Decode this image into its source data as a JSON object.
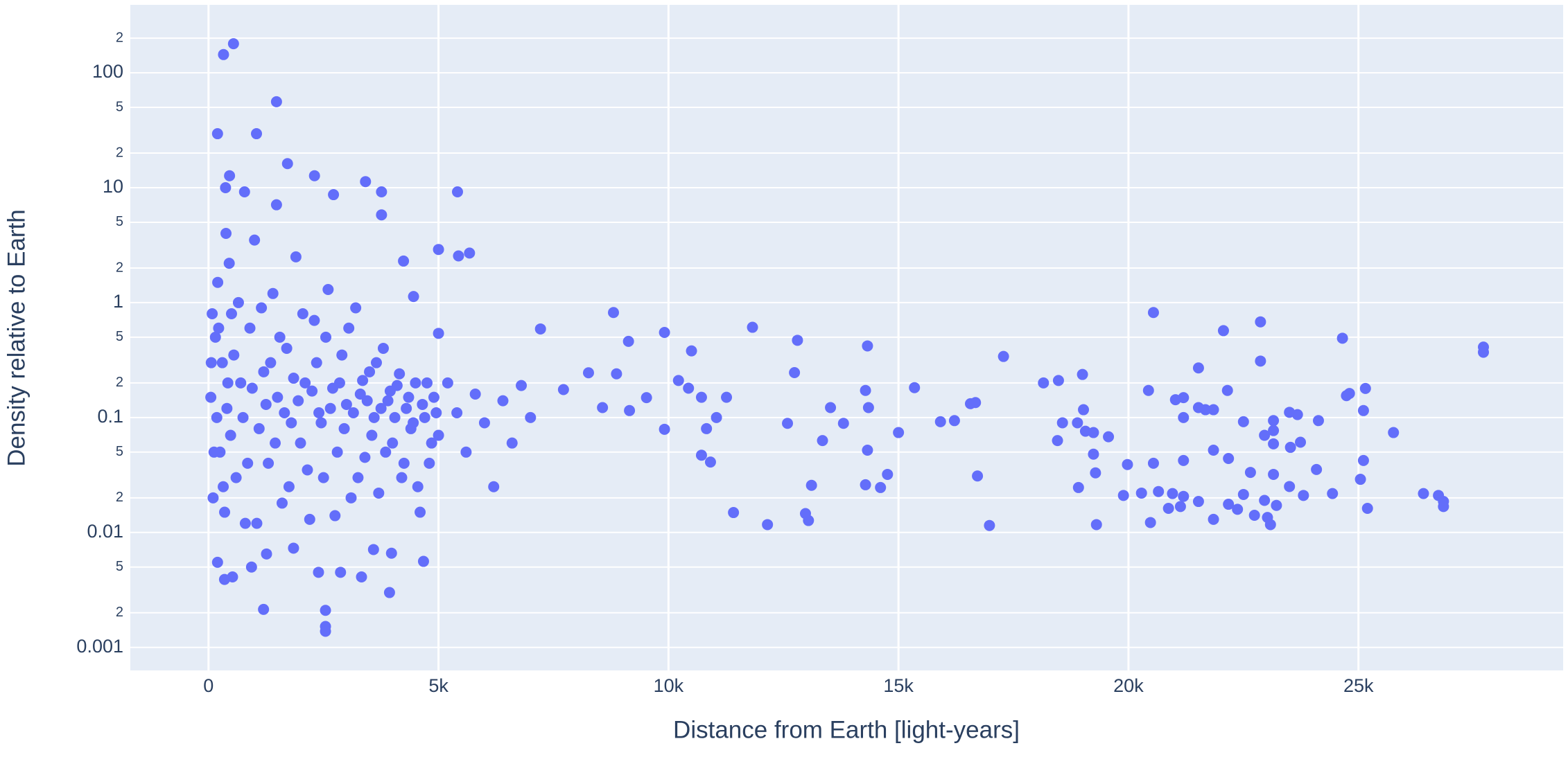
{
  "chart_data": {
    "type": "scatter",
    "xlabel": "Distance from Earth [light-years]",
    "ylabel": "Density relative to Earth",
    "color": "#636efa",
    "grid": true,
    "ylog": true,
    "xlim": [
      -1700,
      29450
    ],
    "ylim": [
      0.00063,
      390
    ],
    "xticks": [
      0,
      {
        "value": 5000,
        "label": "5k"
      },
      {
        "value": 10000,
        "label": "10k"
      },
      {
        "value": 15000,
        "label": "15k"
      },
      {
        "value": 20000,
        "label": "20k"
      },
      {
        "value": 25000,
        "label": "25k"
      }
    ],
    "yticks": [
      0.001,
      0.01,
      0.1,
      1,
      10,
      100
    ],
    "yminorticks": [
      {
        "value": 0.002,
        "label": "2"
      },
      {
        "value": 0.005,
        "label": "5"
      },
      {
        "value": 0.02,
        "label": "2"
      },
      {
        "value": 0.05,
        "label": "5"
      },
      {
        "value": 0.2,
        "label": "2"
      },
      {
        "value": 0.5,
        "label": "5"
      },
      2,
      5,
      {
        "value": 20,
        "label": "2"
      },
      {
        "value": 50,
        "label": "5"
      },
      {
        "value": 200,
        "label": "2"
      }
    ],
    "x": [
      543,
      326,
      1478,
      196,
      1043,
      1717,
      2304,
      457,
      3413,
      5413,
      3761,
      783,
      2717,
      370,
      3761,
      1478,
      5000,
      5435,
      5674,
      4239,
      4457,
      5000,
      8804,
      7217,
      9130,
      9913,
      10500,
      11826,
      12804,
      14326,
      17283,
      20543,
      22065,
      22870,
      24652,
      27717,
      27717,
      22870,
      21522,
      1196,
      2543,
      2543,
      2543,
      3935,
      348,
      522,
      2391,
      2870,
      3326,
      4674,
      935,
      196,
      1261,
      1848,
      3587,
      3978,
      100,
      150,
      200,
      250,
      300,
      350,
      400,
      450,
      500,
      600,
      700,
      800,
      900,
      1000,
      1100,
      1200,
      1300,
      1400,
      1500,
      1600,
      1700,
      1800,
      1900,
      2000,
      2100,
      2200,
      2300,
      2400,
      2500,
      2600,
      2700,
      2800,
      2900,
      3000,
      3100,
      3200,
      3300,
      3400,
      3500,
      3600,
      3700,
      3800,
      3900,
      4000,
      4100,
      4200,
      4300,
      4400,
      4500,
      4600,
      4700,
      4800,
      4900,
      5000,
      5200,
      5400,
      5600,
      5800,
      6000,
      6200,
      6400,
      6600,
      6800,
      7000,
      50,
      80,
      120,
      60,
      180,
      220,
      320,
      380,
      420,
      480,
      550,
      650,
      750,
      850,
      950,
      1050,
      1150,
      1250,
      1350,
      1450,
      1550,
      1650,
      1750,
      1850,
      1950,
      2050,
      2150,
      2250,
      2350,
      2450,
      2550,
      2650,
      2750,
      2850,
      2950,
      3050,
      3150,
      3250,
      3350,
      3450,
      3550,
      3650,
      3750,
      3850,
      3950,
      4050,
      4150,
      4250,
      4350,
      4450,
      4550,
      4650,
      4750,
      4850,
      4950,
      7717,
      8261,
      8565,
      8870,
      9152,
      9522,
      9913,
      10217,
      10435,
      10717,
      10826,
      11043,
      11261,
      10717,
      10913,
      11413,
      12152,
      12587,
      12739,
      12978,
      13043,
      13109,
      13348,
      13522,
      13804,
      14283,
      14348,
      14326,
      14283,
      14609,
      14761,
      15000,
      15348,
      15913,
      16217,
      16565,
      16674,
      16717,
      16978,
      18152,
      18478,
      18565,
      18457,
      18891,
      19000,
      19022,
      19065,
      19239,
      19239,
      19283,
      19304,
      18913,
      19565,
      19978,
      19891,
      20283,
      20435,
      20543,
      20478,
      20652,
      20870,
      20957,
      21022,
      21196,
      21196,
      21196,
      21196,
      21130,
      21522,
      21522,
      21674,
      21848,
      21848,
      21848,
      22152,
      22174,
      22174,
      22370,
      22500,
      22500,
      22652,
      22739,
      22957,
      22957,
      23022,
      23087,
      23152,
      23152,
      23152,
      23152,
      23217,
      23500,
      23522,
      23500,
      23674,
      23739,
      23804,
      24087,
      24130,
      24435,
      24739,
      24804,
      25152,
      25109,
      25109,
      25043,
      25196,
      25761,
      26413,
      26739,
      26848,
      26848
    ],
    "values": [
      179,
      144,
      56,
      29.5,
      29.5,
      16.2,
      12.7,
      12.7,
      11.3,
      9.2,
      9.2,
      9.2,
      8.7,
      10,
      5.8,
      7.1,
      2.9,
      2.55,
      2.7,
      2.3,
      1.13,
      0.54,
      0.82,
      0.59,
      0.46,
      0.55,
      0.38,
      0.61,
      0.47,
      0.42,
      0.34,
      0.82,
      0.57,
      0.68,
      0.49,
      0.41,
      0.37,
      0.31,
      0.27,
      0.00214,
      0.0021,
      0.00152,
      0.00138,
      0.003,
      0.0039,
      0.0041,
      0.0045,
      0.0045,
      0.0041,
      0.0056,
      0.005,
      0.0055,
      0.0065,
      0.0073,
      0.0071,
      0.0066,
      0.02,
      0.5,
      1.5,
      0.05,
      0.3,
      0.015,
      0.12,
      2.2,
      0.8,
      0.03,
      0.2,
      0.012,
      0.6,
      3.5,
      0.08,
      0.25,
      0.04,
      1.2,
      0.15,
      0.018,
      0.4,
      0.09,
      2.5,
      0.06,
      0.2,
      0.013,
      0.7,
      0.11,
      0.03,
      1.3,
      0.18,
      0.05,
      0.35,
      0.13,
      0.02,
      0.9,
      0.16,
      0.045,
      0.25,
      0.1,
      0.022,
      0.4,
      0.14,
      0.06,
      0.19,
      0.03,
      0.12,
      0.08,
      0.2,
      0.015,
      0.1,
      0.04,
      0.15,
      0.07,
      0.2,
      0.11,
      0.05,
      0.16,
      0.09,
      0.025,
      0.14,
      0.06,
      0.19,
      0.1,
      0.15,
      0.8,
      0.05,
      0.3,
      0.1,
      0.6,
      0.025,
      4,
      0.2,
      0.07,
      0.35,
      1.0,
      0.1,
      0.04,
      0.18,
      0.012,
      0.9,
      0.13,
      0.3,
      0.06,
      0.5,
      0.11,
      0.025,
      0.22,
      0.14,
      0.8,
      0.035,
      0.17,
      0.3,
      0.09,
      0.5,
      0.12,
      0.014,
      0.2,
      0.08,
      0.6,
      0.11,
      0.03,
      0.21,
      0.14,
      0.07,
      0.3,
      0.12,
      0.05,
      0.17,
      0.1,
      0.24,
      0.04,
      0.15,
      0.09,
      0.025,
      0.13,
      0.2,
      0.06,
      0.11,
      0.175,
      0.245,
      0.122,
      0.24,
      0.115,
      0.149,
      0.079,
      0.21,
      0.18,
      0.15,
      0.08,
      0.1,
      0.15,
      0.047,
      0.041,
      0.0149,
      0.0117,
      0.089,
      0.246,
      0.0146,
      0.0127,
      0.0257,
      0.063,
      0.122,
      0.089,
      0.172,
      0.122,
      0.052,
      0.026,
      0.0246,
      0.032,
      0.074,
      0.182,
      0.092,
      0.094,
      0.132,
      0.135,
      0.031,
      0.0115,
      0.2,
      0.21,
      0.09,
      0.063,
      0.09,
      0.237,
      0.117,
      0.076,
      0.074,
      0.048,
      0.033,
      0.0117,
      0.0246,
      0.068,
      0.039,
      0.021,
      0.022,
      0.172,
      0.04,
      0.0122,
      0.0227,
      0.0162,
      0.0218,
      0.143,
      0.149,
      0.1,
      0.0423,
      0.0206,
      0.0168,
      0.122,
      0.0186,
      0.117,
      0.117,
      0.052,
      0.013,
      0.172,
      0.044,
      0.0176,
      0.0159,
      0.0214,
      0.092,
      0.0333,
      0.0141,
      0.019,
      0.07,
      0.0135,
      0.0117,
      0.094,
      0.077,
      0.059,
      0.032,
      0.0172,
      0.111,
      0.055,
      0.0251,
      0.106,
      0.061,
      0.021,
      0.0353,
      0.094,
      0.0218,
      0.155,
      0.162,
      0.179,
      0.115,
      0.0423,
      0.029,
      0.0162,
      0.074,
      0.0218,
      0.021,
      0.0186,
      0.0168
    ]
  }
}
